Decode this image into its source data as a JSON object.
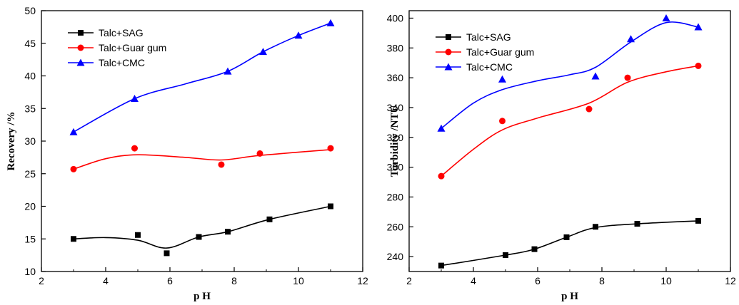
{
  "chart_data": [
    {
      "type": "line",
      "xlabel": "p H",
      "ylabel": "Recovery /%",
      "xlim": [
        2,
        12
      ],
      "ylim": [
        10,
        50
      ],
      "xticks": [
        2,
        4,
        6,
        8,
        10,
        12
      ],
      "yticks": [
        10,
        15,
        20,
        25,
        30,
        35,
        40,
        45,
        50
      ],
      "legend_position": "top-left",
      "grid": false,
      "series": [
        {
          "name": "Talc+SAG",
          "color": "#000000",
          "marker": "square",
          "points": [
            [
              3.0,
              15.0
            ],
            [
              5.0,
              15.6
            ],
            [
              5.9,
              12.8
            ],
            [
              6.9,
              15.3
            ],
            [
              7.8,
              16.1
            ],
            [
              9.1,
              18.0
            ],
            [
              11.0,
              20.0
            ]
          ],
          "curve": [
            [
              3.0,
              15.0
            ],
            [
              4.0,
              15.2
            ],
            [
              5.0,
              14.8
            ],
            [
              5.9,
              13.6
            ],
            [
              6.9,
              15.3
            ],
            [
              7.8,
              16.1
            ],
            [
              9.1,
              18.0
            ],
            [
              11.0,
              20.0
            ]
          ]
        },
        {
          "name": "Talc+Guar gum",
          "color": "#ff0000",
          "marker": "circle",
          "points": [
            [
              3.0,
              25.7
            ],
            [
              4.9,
              28.9
            ],
            [
              7.6,
              26.4
            ],
            [
              8.8,
              28.1
            ],
            [
              11.0,
              28.9
            ]
          ],
          "curve": [
            [
              3.0,
              25.7
            ],
            [
              4.0,
              27.3
            ],
            [
              5.0,
              27.9
            ],
            [
              6.5,
              27.5
            ],
            [
              7.6,
              27.1
            ],
            [
              8.8,
              27.8
            ],
            [
              11.0,
              28.7
            ]
          ]
        },
        {
          "name": "Talc+CMC",
          "color": "#0000ff",
          "marker": "triangle",
          "points": [
            [
              3.0,
              31.4
            ],
            [
              4.9,
              36.5
            ],
            [
              7.8,
              40.7
            ],
            [
              8.9,
              43.7
            ],
            [
              10.0,
              46.2
            ],
            [
              11.0,
              48.1
            ]
          ],
          "curve": [
            [
              3.0,
              31.4
            ],
            [
              4.9,
              36.5
            ],
            [
              6.5,
              38.8
            ],
            [
              7.8,
              40.7
            ],
            [
              8.9,
              43.7
            ],
            [
              10.0,
              46.2
            ],
            [
              11.0,
              48.1
            ]
          ]
        }
      ]
    },
    {
      "type": "line",
      "xlabel": "p H",
      "ylabel": "Turbidity /NTU",
      "xlim": [
        2,
        12
      ],
      "ylim": [
        230,
        405
      ],
      "xticks": [
        2,
        4,
        6,
        8,
        10,
        12
      ],
      "yticks": [
        240,
        260,
        280,
        300,
        320,
        340,
        360,
        380,
        400
      ],
      "legend_position": "top-left",
      "grid": false,
      "series": [
        {
          "name": "Talc+SAG",
          "color": "#000000",
          "marker": "square",
          "points": [
            [
              3.0,
              234
            ],
            [
              5.0,
              241
            ],
            [
              5.9,
              245
            ],
            [
              6.9,
              253
            ],
            [
              7.8,
              260
            ],
            [
              9.1,
              262
            ],
            [
              11.0,
              264
            ]
          ],
          "curve": [
            [
              3.0,
              234
            ],
            [
              5.0,
              241
            ],
            [
              5.9,
              245
            ],
            [
              6.9,
              253
            ],
            [
              7.8,
              259.5
            ],
            [
              9.1,
              262
            ],
            [
              11.0,
              264
            ]
          ]
        },
        {
          "name": "Talc+Guar gum",
          "color": "#ff0000",
          "marker": "circle",
          "points": [
            [
              3.0,
              294
            ],
            [
              4.9,
              331
            ],
            [
              7.6,
              339
            ],
            [
              8.8,
              360
            ],
            [
              11.0,
              368
            ]
          ],
          "curve": [
            [
              3.0,
              294
            ],
            [
              4.0,
              312
            ],
            [
              4.9,
              325
            ],
            [
              6.0,
              333
            ],
            [
              7.6,
              343
            ],
            [
              8.8,
              357
            ],
            [
              10.0,
              364
            ],
            [
              11.0,
              368
            ]
          ]
        },
        {
          "name": "Talc+CMC",
          "color": "#0000ff",
          "marker": "triangle",
          "points": [
            [
              3.0,
              326
            ],
            [
              4.9,
              359
            ],
            [
              7.8,
              361
            ],
            [
              8.9,
              386
            ],
            [
              10.0,
              400
            ],
            [
              11.0,
              394
            ]
          ],
          "curve": [
            [
              3.0,
              326
            ],
            [
              4.0,
              343
            ],
            [
              4.9,
              352
            ],
            [
              6.0,
              358
            ],
            [
              7.0,
              362
            ],
            [
              7.8,
              367
            ],
            [
              8.9,
              384
            ],
            [
              10.0,
              397
            ],
            [
              11.0,
              394
            ]
          ]
        }
      ]
    }
  ]
}
